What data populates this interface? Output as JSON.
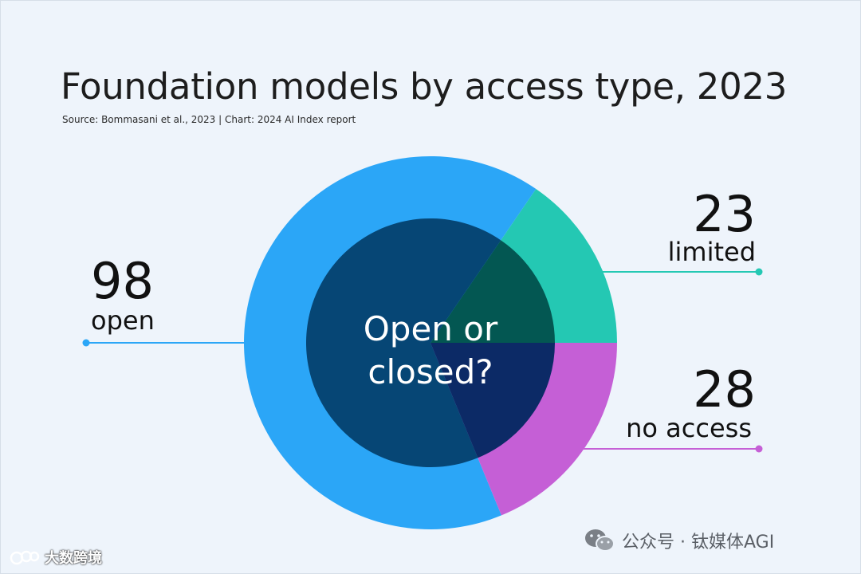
{
  "chart_data": {
    "type": "pie",
    "title": "Foundation models by access type, 2023",
    "subtitle": "Source: Bommasani et al., 2023 | Chart: 2024 AI Index report",
    "center_text": [
      "Open or",
      "closed?"
    ],
    "slices": [
      {
        "label": "open",
        "value": 98,
        "color": "#2ba6f7",
        "inner_color": "#064675"
      },
      {
        "label": "limited",
        "value": 23,
        "color": "#24c8b3",
        "inner_color": "#035752"
      },
      {
        "label": "no access",
        "value": 28,
        "color": "#c55fd6",
        "inner_color": "#0c2a66"
      }
    ]
  },
  "watermarks": {
    "wechat": "公众号 · 钛媒体AGI",
    "corner": "大数跨境"
  }
}
